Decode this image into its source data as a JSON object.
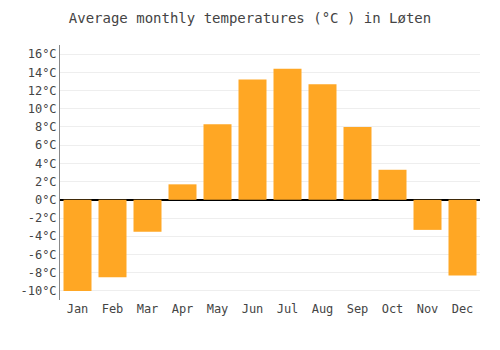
{
  "chart_data": {
    "type": "bar",
    "title": "Average monthly temperatures (°C ) in Løten",
    "categories": [
      "Jan",
      "Feb",
      "Mar",
      "Apr",
      "May",
      "Jun",
      "Jul",
      "Aug",
      "Sep",
      "Oct",
      "Nov",
      "Dec"
    ],
    "values": [
      -10,
      -8.5,
      -3.5,
      1.7,
      8.3,
      13.2,
      14.4,
      12.7,
      8.0,
      3.3,
      -3.3,
      -8.3
    ],
    "color": "#FFA724",
    "ylim": [
      -11,
      17
    ],
    "yticks": [
      {
        "value": -10,
        "label": "-10°C"
      },
      {
        "value": -8,
        "label": "-8°C"
      },
      {
        "value": -6,
        "label": "-6°C"
      },
      {
        "value": -4,
        "label": "-4°C"
      },
      {
        "value": -2,
        "label": "-2°C"
      },
      {
        "value": 0,
        "label": "0°C"
      },
      {
        "value": 2,
        "label": "2°C"
      },
      {
        "value": 4,
        "label": "4°C"
      },
      {
        "value": 6,
        "label": "6°C"
      },
      {
        "value": 8,
        "label": "8°C"
      },
      {
        "value": 10,
        "label": "10°C"
      },
      {
        "value": 12,
        "label": "12°C"
      },
      {
        "value": 14,
        "label": "14°C"
      },
      {
        "value": 16,
        "label": "16°C"
      }
    ],
    "grid": true
  }
}
